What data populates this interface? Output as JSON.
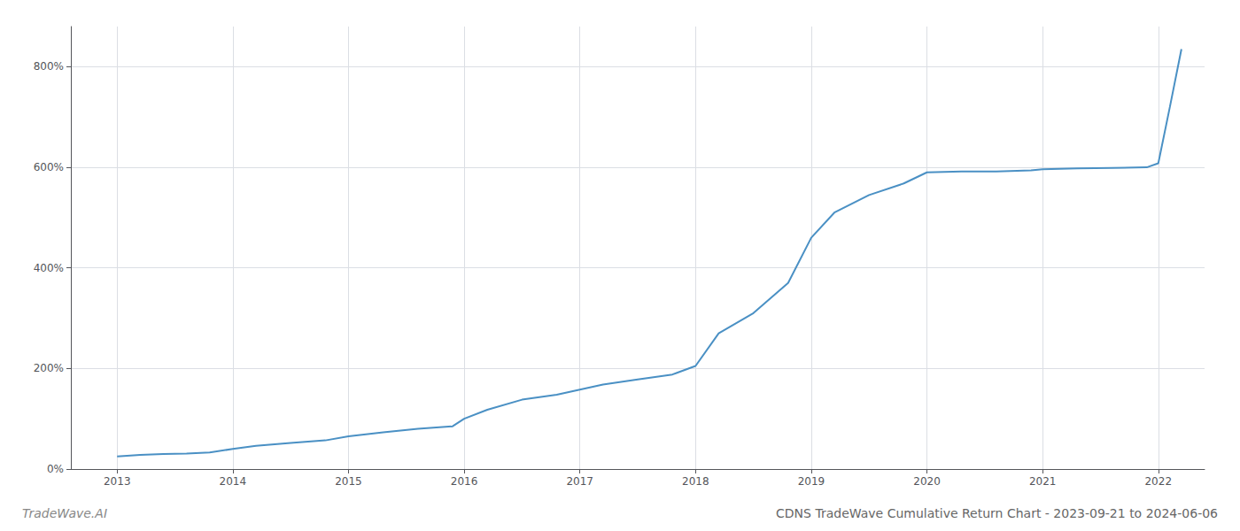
{
  "chart_data": {
    "type": "line",
    "title": "CDNS TradeWave Cumulative Return Chart - 2023-09-21 to 2024-06-06",
    "annotations": [
      "TradeWave.AI"
    ],
    "x": [
      2013.0,
      2013.2,
      2013.4,
      2013.6,
      2013.8,
      2014.0,
      2014.2,
      2014.5,
      2014.8,
      2015.0,
      2015.3,
      2015.6,
      2015.9,
      2016.0,
      2016.2,
      2016.5,
      2016.8,
      2017.0,
      2017.2,
      2017.5,
      2017.8,
      2018.0,
      2018.2,
      2018.5,
      2018.8,
      2019.0,
      2019.2,
      2019.5,
      2019.8,
      2020.0,
      2020.3,
      2020.6,
      2020.9,
      2021.0,
      2021.3,
      2021.6,
      2021.9,
      2022.0,
      2022.1,
      2022.2
    ],
    "values": [
      25,
      28,
      30,
      31,
      33,
      40,
      46,
      52,
      57,
      65,
      73,
      80,
      85,
      100,
      118,
      138,
      148,
      158,
      168,
      178,
      188,
      205,
      270,
      310,
      370,
      460,
      510,
      545,
      568,
      590,
      592,
      592,
      594,
      596,
      598,
      599,
      600,
      608,
      720,
      835
    ],
    "color": "#4a90c4",
    "xlim": [
      2012.6,
      2022.4
    ],
    "xticks": [
      2013,
      2014,
      2015,
      2016,
      2017,
      2018,
      2019,
      2020,
      2021,
      2022
    ],
    "ylim": [
      0,
      880
    ],
    "yticks": [
      {
        "value": 0,
        "label": "0%"
      },
      {
        "value": 200,
        "label": "200%"
      },
      {
        "value": 400,
        "label": "400%"
      },
      {
        "value": 600,
        "label": "600%"
      },
      {
        "value": 800,
        "label": "800%"
      }
    ],
    "grid": true
  }
}
